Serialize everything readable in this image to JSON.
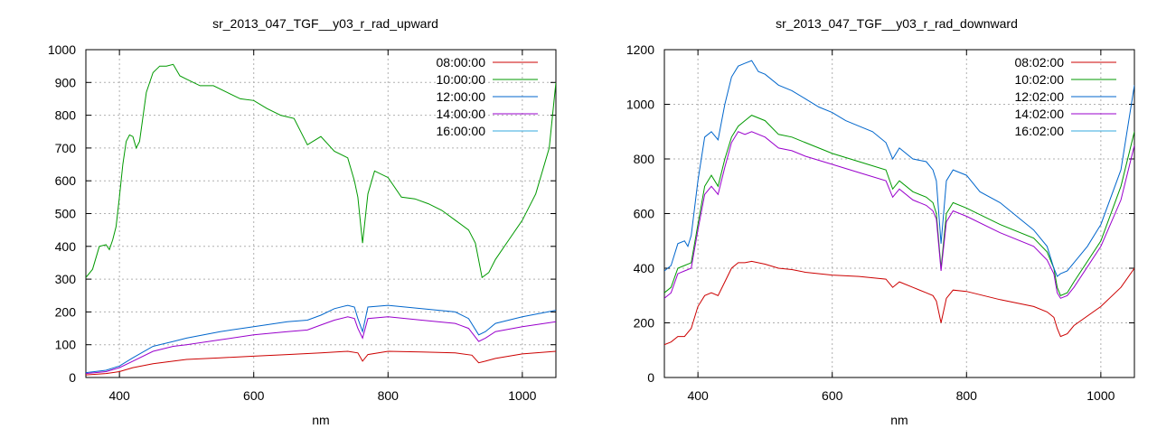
{
  "chart_data": [
    {
      "type": "line",
      "title": "sr_2013_047_TGF__y03_r_rad_upward",
      "xlabel": "nm",
      "ylabel": "",
      "xlim": [
        350,
        1050
      ],
      "ylim": [
        0,
        1000
      ],
      "xticks": [
        400,
        600,
        800,
        1000
      ],
      "yticks": [
        0,
        100,
        200,
        300,
        400,
        500,
        600,
        700,
        800,
        900,
        1000
      ],
      "grid": true,
      "legend_position": "top-right",
      "series": [
        {
          "name": "08:00:00",
          "color": "#cc0000",
          "x": [
            350,
            380,
            400,
            420,
            450,
            480,
            500,
            550,
            600,
            650,
            700,
            740,
            755,
            762,
            770,
            800,
            850,
            900,
            925,
            935,
            945,
            960,
            1000,
            1050
          ],
          "y": [
            8,
            12,
            18,
            30,
            42,
            50,
            55,
            60,
            65,
            70,
            75,
            80,
            75,
            50,
            70,
            80,
            78,
            75,
            68,
            45,
            50,
            58,
            72,
            80
          ]
        },
        {
          "name": "10:00:00",
          "color": "#009900",
          "x": [
            350,
            360,
            370,
            380,
            385,
            390,
            395,
            400,
            405,
            410,
            415,
            420,
            425,
            430,
            440,
            450,
            460,
            470,
            480,
            490,
            500,
            520,
            540,
            560,
            580,
            600,
            620,
            640,
            660,
            680,
            700,
            720,
            740,
            750,
            755,
            762,
            770,
            780,
            800,
            820,
            840,
            860,
            880,
            900,
            920,
            930,
            940,
            950,
            960,
            980,
            1000,
            1020,
            1040,
            1050
          ],
          "y": [
            305,
            330,
            400,
            405,
            390,
            420,
            460,
            550,
            650,
            720,
            740,
            735,
            700,
            720,
            870,
            930,
            950,
            950,
            955,
            920,
            910,
            890,
            890,
            870,
            850,
            845,
            820,
            800,
            790,
            710,
            735,
            690,
            670,
            600,
            550,
            410,
            560,
            630,
            610,
            550,
            545,
            530,
            510,
            480,
            450,
            410,
            305,
            320,
            360,
            420,
            480,
            560,
            700,
            900
          ]
        },
        {
          "name": "12:00:00",
          "color": "#0066cc",
          "x": [
            350,
            380,
            400,
            420,
            450,
            480,
            500,
            550,
            600,
            650,
            680,
            700,
            720,
            740,
            750,
            755,
            762,
            770,
            800,
            850,
            900,
            920,
            935,
            945,
            960,
            1000,
            1050
          ],
          "y": [
            15,
            22,
            35,
            60,
            95,
            110,
            120,
            140,
            155,
            170,
            175,
            190,
            210,
            220,
            215,
            180,
            140,
            215,
            220,
            210,
            200,
            180,
            130,
            140,
            165,
            185,
            205
          ]
        },
        {
          "name": "14:00:00",
          "color": "#9900cc",
          "x": [
            350,
            380,
            400,
            420,
            450,
            480,
            500,
            550,
            600,
            650,
            680,
            700,
            720,
            740,
            750,
            755,
            762,
            770,
            800,
            850,
            900,
            920,
            935,
            945,
            960,
            1000,
            1050
          ],
          "y": [
            12,
            18,
            30,
            50,
            80,
            95,
            100,
            115,
            130,
            140,
            145,
            160,
            175,
            185,
            180,
            150,
            120,
            180,
            185,
            175,
            165,
            150,
            110,
            120,
            140,
            155,
            170
          ]
        },
        {
          "name": "16:00:00",
          "color": "#33aadd",
          "x": [],
          "y": []
        }
      ]
    },
    {
      "type": "line",
      "title": "sr_2013_047_TGF__y03_r_rad_downward",
      "xlabel": "nm",
      "ylabel": "",
      "xlim": [
        350,
        1050
      ],
      "ylim": [
        0,
        1200
      ],
      "xticks": [
        400,
        600,
        800,
        1000
      ],
      "yticks": [
        0,
        200,
        400,
        600,
        800,
        1000,
        1200
      ],
      "grid": true,
      "legend_position": "top-right",
      "series": [
        {
          "name": "08:02:00",
          "color": "#cc0000",
          "x": [
            350,
            360,
            370,
            380,
            390,
            400,
            410,
            420,
            430,
            440,
            450,
            460,
            470,
            480,
            500,
            520,
            540,
            560,
            600,
            640,
            680,
            690,
            700,
            720,
            740,
            750,
            755,
            762,
            770,
            780,
            800,
            850,
            900,
            920,
            930,
            935,
            940,
            950,
            960,
            1000,
            1030,
            1050
          ],
          "y": [
            120,
            130,
            150,
            150,
            180,
            260,
            300,
            310,
            300,
            350,
            400,
            420,
            420,
            425,
            415,
            400,
            395,
            385,
            375,
            370,
            360,
            330,
            350,
            330,
            310,
            300,
            280,
            200,
            290,
            320,
            315,
            285,
            260,
            240,
            220,
            180,
            150,
            160,
            190,
            260,
            330,
            400
          ]
        },
        {
          "name": "10:02:00",
          "color": "#009900",
          "x": [
            350,
            360,
            370,
            380,
            390,
            400,
            410,
            420,
            430,
            440,
            450,
            460,
            470,
            480,
            500,
            520,
            540,
            560,
            600,
            640,
            680,
            690,
            700,
            720,
            740,
            750,
            755,
            762,
            770,
            780,
            800,
            850,
            900,
            920,
            930,
            935,
            940,
            950,
            960,
            1000,
            1030,
            1050
          ],
          "y": [
            310,
            330,
            400,
            410,
            420,
            560,
            700,
            740,
            700,
            800,
            880,
            920,
            940,
            960,
            940,
            890,
            880,
            860,
            820,
            790,
            760,
            690,
            720,
            680,
            660,
            640,
            600,
            400,
            600,
            640,
            620,
            560,
            510,
            460,
            400,
            330,
            300,
            310,
            350,
            500,
            700,
            900
          ]
        },
        {
          "name": "12:02:00",
          "color": "#0066cc",
          "x": [
            350,
            360,
            370,
            380,
            385,
            390,
            400,
            410,
            420,
            430,
            440,
            450,
            460,
            470,
            480,
            490,
            500,
            520,
            540,
            560,
            580,
            600,
            620,
            640,
            660,
            680,
            690,
            700,
            720,
            740,
            750,
            755,
            762,
            770,
            780,
            800,
            820,
            850,
            880,
            900,
            920,
            930,
            935,
            940,
            950,
            960,
            980,
            1000,
            1030,
            1050
          ],
          "y": [
            390,
            410,
            490,
            500,
            480,
            520,
            720,
            880,
            900,
            870,
            1000,
            1100,
            1140,
            1150,
            1160,
            1120,
            1110,
            1070,
            1050,
            1020,
            990,
            970,
            940,
            920,
            900,
            860,
            800,
            840,
            800,
            790,
            760,
            720,
            490,
            720,
            760,
            740,
            680,
            640,
            580,
            540,
            480,
            400,
            370,
            380,
            390,
            420,
            480,
            560,
            760,
            1070
          ]
        },
        {
          "name": "14:02:00",
          "color": "#9900cc",
          "x": [
            350,
            360,
            370,
            380,
            390,
            400,
            410,
            420,
            430,
            440,
            450,
            460,
            470,
            480,
            500,
            520,
            540,
            560,
            600,
            640,
            680,
            690,
            700,
            720,
            740,
            750,
            755,
            762,
            770,
            780,
            800,
            850,
            900,
            920,
            930,
            935,
            940,
            950,
            960,
            1000,
            1030,
            1050
          ],
          "y": [
            290,
            310,
            380,
            390,
            400,
            540,
            670,
            700,
            670,
            770,
            860,
            900,
            890,
            900,
            880,
            840,
            830,
            810,
            780,
            750,
            720,
            660,
            690,
            650,
            630,
            610,
            580,
            390,
            570,
            610,
            590,
            530,
            480,
            430,
            380,
            310,
            290,
            300,
            330,
            480,
            650,
            850
          ]
        },
        {
          "name": "16:02:00",
          "color": "#33aadd",
          "x": [],
          "y": []
        }
      ]
    }
  ]
}
